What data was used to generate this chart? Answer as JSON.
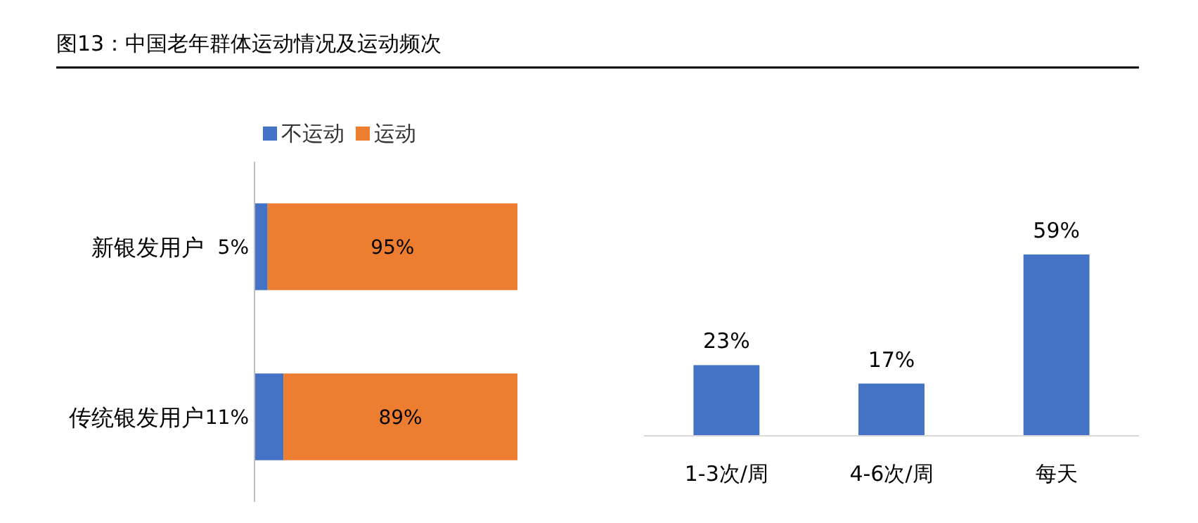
{
  "chart_data": [
    {
      "type": "bar",
      "title": "图13：中国老年群体运动情况及运动频次",
      "orientation": "horizontal",
      "stacked": true,
      "legend": "top",
      "categories": [
        "新银发用户",
        "传统银发用户"
      ],
      "series": [
        {
          "name": "不运动",
          "color": "#4472c4",
          "values": [
            5,
            11
          ],
          "value_labels": [
            "5%",
            "11%"
          ]
        },
        {
          "name": "运动",
          "color": "#ed7d31",
          "values": [
            95,
            89
          ],
          "value_labels": [
            "95%",
            "89%"
          ]
        }
      ]
    },
    {
      "type": "bar",
      "categories": [
        "1-3次/周",
        "4-6次/周",
        "每天"
      ],
      "series": [
        {
          "color": "#4472c4",
          "values": [
            23,
            17,
            59
          ],
          "value_labels": [
            "23%",
            "17%",
            "59%"
          ]
        }
      ]
    }
  ]
}
